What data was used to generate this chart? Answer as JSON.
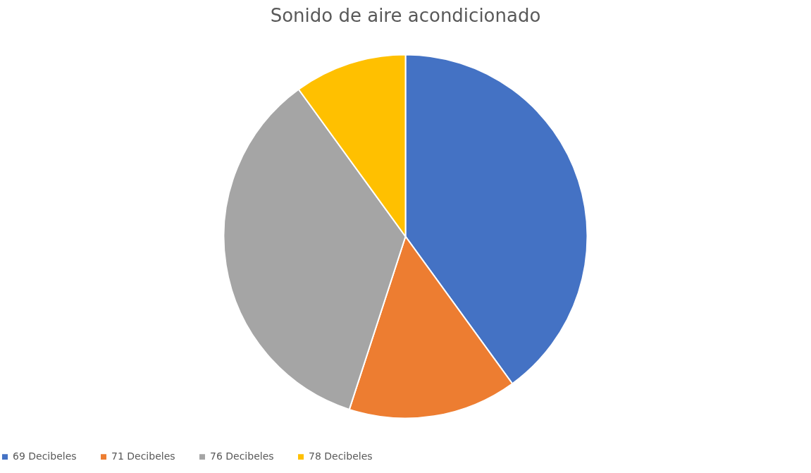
{
  "chart_data": {
    "type": "pie",
    "title": "Sonido de aire acondicionado",
    "categories": [
      "69 Decibeles",
      "71 Decibeles",
      "76 Decibeles",
      "78 Decibeles"
    ],
    "values": [
      40,
      15,
      35,
      10
    ],
    "colors": [
      "#4472c4",
      "#ed7d31",
      "#a5a5a5",
      "#ffc000"
    ],
    "legend": "bottom"
  }
}
